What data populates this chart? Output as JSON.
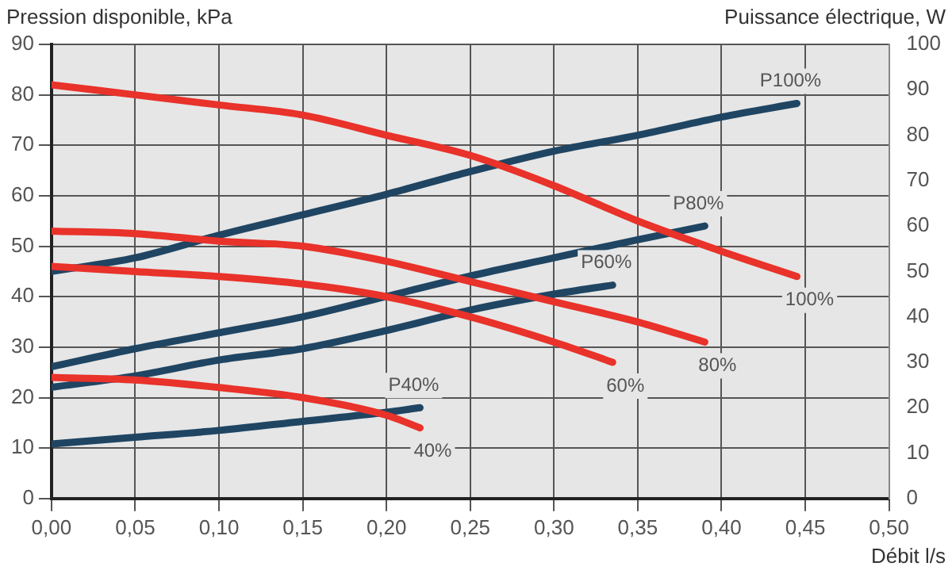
{
  "chart_data": {
    "type": "line",
    "ylabel": "Pression disponible, kPa",
    "y2label": "Puissance électrique, W",
    "xlabel": "Débit l/s",
    "xlim": [
      0,
      0.5
    ],
    "xticks": [
      {
        "value": 0,
        "label": "0,00"
      },
      {
        "value": 0.05,
        "label": "0,05"
      },
      {
        "value": 0.1,
        "label": "0,10"
      },
      {
        "value": 0.15,
        "label": "0,15"
      },
      {
        "value": 0.2,
        "label": "0,20"
      },
      {
        "value": 0.25,
        "label": "0,25"
      },
      {
        "value": 0.3,
        "label": "0,30"
      },
      {
        "value": 0.35,
        "label": "0,35"
      },
      {
        "value": 0.4,
        "label": "0,40"
      },
      {
        "value": 0.45,
        "label": "0,45"
      },
      {
        "value": 0.5,
        "label": "0,50"
      }
    ],
    "ylim": [
      0,
      90
    ],
    "yticks": [
      0,
      10,
      20,
      30,
      40,
      50,
      60,
      70,
      80,
      90
    ],
    "y2lim": [
      0,
      100
    ],
    "y2ticks": [
      0,
      10,
      20,
      30,
      40,
      50,
      60,
      70,
      80,
      90,
      100
    ],
    "grid": true,
    "legend": false,
    "marker": "none",
    "line_style": "solid",
    "series": [
      {
        "name": "100%",
        "color": "#e8322a",
        "x": [
          0,
          0.05,
          0.1,
          0.15,
          0.2,
          0.25,
          0.3,
          0.35,
          0.4,
          0.445
        ],
        "values": [
          82,
          80,
          78,
          76,
          72,
          68,
          62,
          55,
          49,
          44
        ]
      },
      {
        "name": "80%",
        "color": "#e8322a",
        "x": [
          0,
          0.05,
          0.1,
          0.15,
          0.2,
          0.25,
          0.3,
          0.35,
          0.39
        ],
        "values": [
          53,
          52.5,
          51,
          50,
          47,
          43,
          39,
          35,
          31
        ]
      },
      {
        "name": "60%",
        "color": "#e8322a",
        "x": [
          0,
          0.05,
          0.1,
          0.15,
          0.2,
          0.25,
          0.3,
          0.335
        ],
        "values": [
          46,
          45,
          44,
          42.5,
          40,
          36,
          31,
          27
        ]
      },
      {
        "name": "40%",
        "color": "#e8322a",
        "x": [
          0,
          0.05,
          0.1,
          0.15,
          0.2,
          0.22
        ],
        "values": [
          24,
          23.5,
          22,
          20,
          16.5,
          14
        ]
      },
      {
        "name": "P100%",
        "color": "#1f4563",
        "axis": "y2",
        "x": [
          0,
          0.05,
          0.1,
          0.15,
          0.2,
          0.25,
          0.3,
          0.35,
          0.4,
          0.445
        ],
        "values": [
          50,
          53,
          58,
          62.5,
          67,
          72,
          76.5,
          80,
          84,
          87
        ]
      },
      {
        "name": "P80%",
        "color": "#1f4563",
        "axis": "y2",
        "x": [
          0,
          0.05,
          0.1,
          0.15,
          0.2,
          0.25,
          0.3,
          0.35,
          0.39
        ],
        "values": [
          29,
          33,
          36.5,
          40,
          44.5,
          49,
          53,
          57,
          60
        ]
      },
      {
        "name": "P60%",
        "color": "#1f4563",
        "axis": "y2",
        "x": [
          0,
          0.05,
          0.1,
          0.15,
          0.2,
          0.25,
          0.3,
          0.335
        ],
        "values": [
          24.5,
          27,
          30.5,
          33,
          37,
          41.5,
          45,
          47
        ]
      },
      {
        "name": "P40%",
        "color": "#1f4563",
        "axis": "y2",
        "x": [
          0,
          0.05,
          0.1,
          0.15,
          0.2,
          0.22
        ],
        "values": [
          12,
          13.5,
          15,
          17,
          19,
          20
        ]
      }
    ]
  }
}
